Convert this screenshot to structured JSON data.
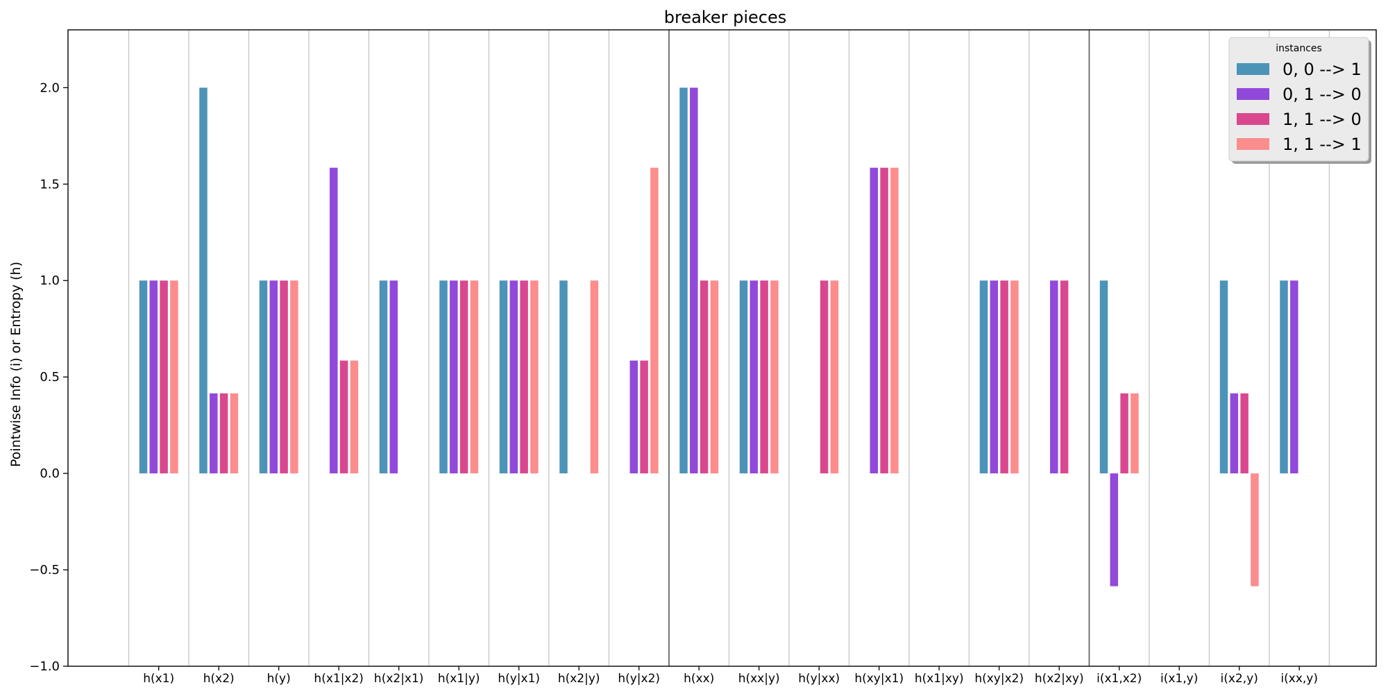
{
  "chart_data": {
    "type": "bar",
    "title": "breaker pieces",
    "xlabel": "",
    "ylabel": "Pointwise Info (i) or Entropy (h)",
    "ylim": [
      -1.0,
      2.3
    ],
    "yticks": [
      "2.0",
      "1.5",
      "1.0",
      "0.5",
      "0.0",
      "−0.5",
      "−1.0"
    ],
    "ytick_values": [
      2.0,
      1.5,
      1.0,
      0.5,
      0.0,
      -0.5,
      -1.0
    ],
    "categories": [
      "h(x1)",
      "h(x2)",
      "h(y)",
      "h(x1|x2)",
      "h(x2|x1)",
      "h(x1|y)",
      "h(y|x1)",
      "h(x2|y)",
      "h(y|x2)",
      "h(xx)",
      "h(xx|y)",
      "h(y|xx)",
      "h(xy|x1)",
      "h(x1|xy)",
      "h(xy|x2)",
      "h(x2|xy)",
      "i(x1,x2)",
      "i(x1,y)",
      "i(x2,y)",
      "i(xx,y)"
    ],
    "group_separators_after": [
      "h(y|x2)",
      "h(x2|xy)"
    ],
    "grid": false,
    "legend": {
      "title": "instances",
      "placement": "top-right"
    },
    "series": [
      {
        "name": "0, 0 --> 1",
        "color": "#4c93b8",
        "values": [
          1,
          2,
          1,
          0,
          1,
          1,
          1,
          1,
          0,
          2,
          1,
          0,
          0,
          0,
          1,
          0,
          1,
          0,
          1,
          1
        ]
      },
      {
        "name": "0, 1 --> 0",
        "color": "#9149d9",
        "values": [
          1,
          0.415,
          1,
          1.585,
          1,
          1,
          1,
          0,
          0.585,
          2,
          1,
          0,
          1.585,
          0,
          1,
          1,
          -0.585,
          0,
          0.415,
          1
        ]
      },
      {
        "name": "1, 1 --> 0",
        "color": "#d9488f",
        "values": [
          1,
          0.415,
          1,
          0.585,
          0,
          1,
          1,
          0,
          0.585,
          1,
          1,
          1,
          1.585,
          0,
          1,
          1,
          0.415,
          0,
          0.415,
          0
        ]
      },
      {
        "name": "1, 1 --> 1",
        "color": "#fc8d8d",
        "values": [
          1,
          0.415,
          1,
          0.585,
          0,
          1,
          1,
          1,
          1.585,
          1,
          1,
          1,
          1.585,
          0,
          1,
          0,
          0.415,
          0,
          -0.585,
          0
        ]
      }
    ]
  }
}
